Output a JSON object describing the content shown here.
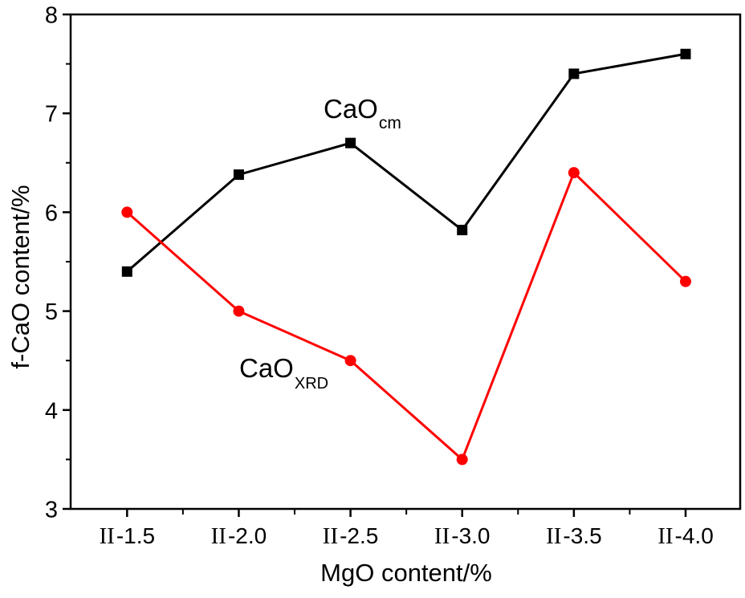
{
  "chart_data": {
    "type": "line",
    "title": "",
    "xlabel": "MgO content/%",
    "ylabel": "f-CaO content/%",
    "categories": [
      "II-1.5",
      "II-2.0",
      "II-2.5",
      "II-3.0",
      "II-3.5",
      "II-4.0"
    ],
    "x_tick_roman_prefix": "II",
    "ylim": [
      3,
      8
    ],
    "y_major_ticks": [
      3,
      4,
      5,
      6,
      7,
      8
    ],
    "y_minor_ticks": [
      3.5,
      4.5,
      5.5,
      6.5,
      7.5
    ],
    "x_minor_ticks_at_category_midpoints": true,
    "grid": "off",
    "legend_position": "inline-labels",
    "series": [
      {
        "name": "CaO_cm",
        "label_main": "CaO",
        "label_sub": "cm",
        "color": "#000000",
        "marker": "square",
        "values": [
          5.4,
          6.38,
          6.7,
          5.82,
          7.4,
          7.6
        ]
      },
      {
        "name": "CaO_XRD",
        "label_main": "CaO",
        "label_sub": "XRD",
        "color": "#ff0000",
        "marker": "circle",
        "values": [
          6.0,
          5.0,
          4.5,
          3.5,
          6.4,
          5.3
        ]
      }
    ],
    "colors": {
      "background": "#ffffff",
      "axis": "#000000",
      "series_cao_cm": "#000000",
      "series_cao_xrd": "#ff0000"
    }
  }
}
